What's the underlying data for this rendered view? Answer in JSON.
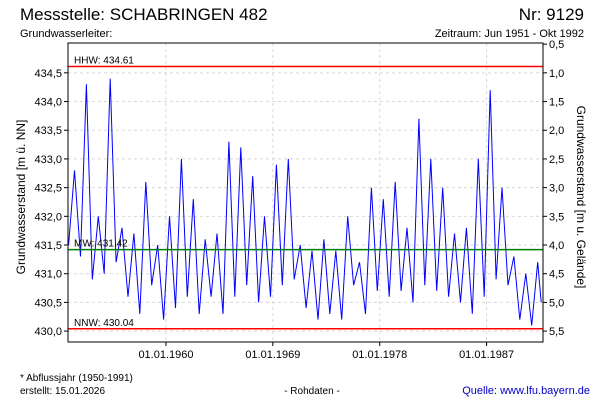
{
  "chart_data": {
    "type": "line",
    "title": "Messstelle: SCHABRINGEN 482",
    "number": "Nr: 9129",
    "subtitle_left": "Grundwasserleiter:",
    "subtitle_right": "Zeitraum: Jun 1951 - Okt 1992",
    "ylabel": "Grundwasserstand [m ü. NN]",
    "y2label": "Grundwasserstand [m u. Gelände]",
    "footnote": "* Abflussjahr (1950-1991)",
    "created": "erstellt:  15.01.2026",
    "data_kind": "- Rohdaten -",
    "source": "Quelle: www.lfu.bayern.de",
    "grid": true,
    "xlim": [
      1951.75,
      1991.75
    ],
    "xticks": [
      {
        "value": 1960,
        "label": "01.01.1960"
      },
      {
        "value": 1969,
        "label": "01.01.1969"
      },
      {
        "value": 1978,
        "label": "01.01.1978"
      },
      {
        "value": 1987,
        "label": "01.01.1987"
      }
    ],
    "ylim": [
      429.81,
      435.02
    ],
    "yticks": [
      {
        "value": 430.0,
        "label": "430,0"
      },
      {
        "value": 430.5,
        "label": "430,5"
      },
      {
        "value": 431.0,
        "label": "431,0"
      },
      {
        "value": 431.5,
        "label": "431,5"
      },
      {
        "value": 432.0,
        "label": "432,0"
      },
      {
        "value": 432.5,
        "label": "432,5"
      },
      {
        "value": 433.0,
        "label": "433,0"
      },
      {
        "value": 433.5,
        "label": "433,5"
      },
      {
        "value": 434.0,
        "label": "434,0"
      },
      {
        "value": 434.5,
        "label": "434,5"
      }
    ],
    "y2lim": [
      5.69,
      0.48
    ],
    "y2ticks": [
      {
        "value": 0.5,
        "label": "0,5"
      },
      {
        "value": 1.0,
        "label": "1,0"
      },
      {
        "value": 1.5,
        "label": "1,5"
      },
      {
        "value": 2.0,
        "label": "2,0"
      },
      {
        "value": 2.5,
        "label": "2,5"
      },
      {
        "value": 3.0,
        "label": "3,0"
      },
      {
        "value": 3.5,
        "label": "3,5"
      },
      {
        "value": 4.0,
        "label": "4,0"
      },
      {
        "value": 4.5,
        "label": "4,5"
      },
      {
        "value": 5.0,
        "label": "5,0"
      },
      {
        "value": 5.5,
        "label": "5,5"
      }
    ],
    "reference_lines": [
      {
        "label": "HHW: 434.61",
        "value": 434.61,
        "color": "#ff0000"
      },
      {
        "label": "MW: 431.42",
        "value": 431.42,
        "color": "#008000"
      },
      {
        "label": "NNW: 430.04",
        "value": 430.04,
        "color": "#ff0000"
      }
    ],
    "x": [
      1951.8,
      1952.3,
      1952.8,
      1953.3,
      1953.8,
      1954.3,
      1954.8,
      1955.3,
      1955.8,
      1956.3,
      1956.8,
      1957.3,
      1957.8,
      1958.3,
      1958.8,
      1959.3,
      1959.8,
      1960.3,
      1960.8,
      1961.3,
      1961.8,
      1962.3,
      1962.8,
      1963.3,
      1963.8,
      1964.3,
      1964.8,
      1965.3,
      1965.8,
      1966.3,
      1966.8,
      1967.3,
      1967.8,
      1968.3,
      1968.8,
      1969.3,
      1969.8,
      1970.3,
      1970.8,
      1971.3,
      1971.8,
      1972.3,
      1972.8,
      1973.3,
      1973.8,
      1974.3,
      1974.8,
      1975.3,
      1975.8,
      1976.3,
      1976.8,
      1977.3,
      1977.8,
      1978.3,
      1978.8,
      1979.3,
      1979.8,
      1980.3,
      1980.8,
      1981.3,
      1981.8,
      1982.3,
      1982.8,
      1983.3,
      1983.8,
      1984.3,
      1984.8,
      1985.3,
      1985.8,
      1986.3,
      1986.8,
      1987.3,
      1987.8,
      1988.3,
      1988.8,
      1989.3,
      1989.8,
      1990.3,
      1990.8,
      1991.3,
      1991.6
    ],
    "series": [
      {
        "name": "Grundwasserstand",
        "color": "#0000ff",
        "values": [
          431.5,
          432.8,
          431.3,
          434.3,
          430.9,
          432.0,
          431.0,
          434.4,
          431.2,
          431.8,
          430.6,
          431.7,
          430.3,
          432.6,
          430.8,
          431.5,
          430.2,
          432.0,
          430.4,
          433.0,
          430.6,
          432.3,
          430.3,
          431.6,
          430.6,
          431.7,
          430.3,
          433.3,
          430.6,
          433.2,
          430.8,
          432.7,
          430.5,
          432.0,
          430.6,
          432.9,
          430.8,
          433.0,
          430.9,
          431.5,
          430.4,
          431.4,
          430.2,
          431.6,
          430.3,
          431.4,
          430.2,
          432.0,
          430.8,
          431.2,
          430.3,
          432.5,
          430.7,
          432.3,
          430.6,
          432.6,
          430.7,
          431.8,
          430.5,
          433.7,
          430.8,
          433.0,
          430.7,
          432.5,
          430.6,
          431.7,
          430.5,
          431.8,
          430.3,
          433.0,
          430.6,
          434.2,
          430.9,
          432.5,
          430.8,
          431.3,
          430.2,
          431.0,
          430.1,
          431.2,
          430.5
        ]
      }
    ]
  }
}
